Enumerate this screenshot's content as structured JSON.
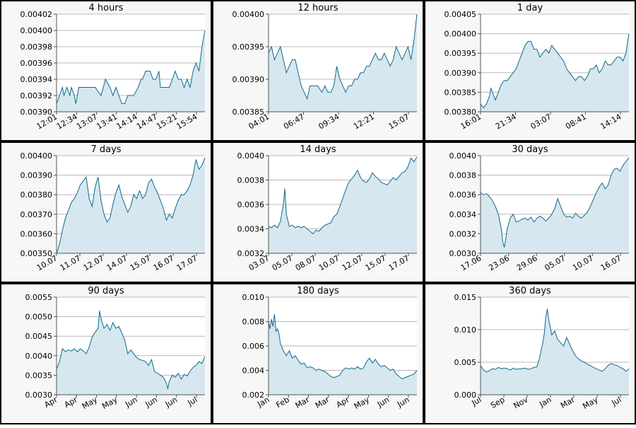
{
  "chart_data": [
    {
      "type": "area",
      "title": "4 hours",
      "ylim": [
        0.0039,
        0.00402
      ],
      "y_ticks": [
        "0.00390",
        "0.00392",
        "0.00394",
        "0.00396",
        "0.00398",
        "0.00400",
        "0.00402"
      ],
      "x_ticks": [
        "12:01",
        "12:34",
        "13:07",
        "13:41",
        "14:14",
        "14:47",
        "15:21",
        "15:54"
      ],
      "x": [
        0,
        0.02,
        0.04,
        0.05,
        0.07,
        0.09,
        0.1,
        0.12,
        0.13,
        0.15,
        0.17,
        0.2,
        0.23,
        0.26,
        0.3,
        0.33,
        0.36,
        0.38,
        0.4,
        0.42,
        0.44,
        0.46,
        0.48,
        0.5,
        0.52,
        0.55,
        0.57,
        0.58,
        0.6,
        0.62,
        0.63,
        0.65,
        0.67,
        0.69,
        0.7,
        0.72,
        0.74,
        0.76,
        0.78,
        0.8,
        0.82,
        0.84,
        0.86,
        0.88,
        0.9,
        0.92,
        0.94,
        0.96,
        0.98,
        1.0
      ],
      "values": [
        0.00391,
        0.00392,
        0.00393,
        0.00392,
        0.00393,
        0.00392,
        0.00393,
        0.00392,
        0.00391,
        0.00393,
        0.00393,
        0.00393,
        0.00393,
        0.00393,
        0.00392,
        0.00394,
        0.00393,
        0.00392,
        0.00393,
        0.00392,
        0.00391,
        0.00391,
        0.00392,
        0.00392,
        0.00392,
        0.00393,
        0.00394,
        0.00394,
        0.00395,
        0.00395,
        0.00395,
        0.00394,
        0.00394,
        0.00395,
        0.00393,
        0.00393,
        0.00393,
        0.00393,
        0.00394,
        0.00395,
        0.00394,
        0.00394,
        0.00393,
        0.00394,
        0.00393,
        0.00395,
        0.00396,
        0.00395,
        0.00398,
        0.004
      ]
    },
    {
      "type": "area",
      "title": "12 hours",
      "ylim": [
        0.00385,
        0.004
      ],
      "y_ticks": [
        "0.00385",
        "0.00390",
        "0.00395",
        "0.00400"
      ],
      "x_ticks": [
        "04:01",
        "06:47",
        "09:34",
        "12:21",
        "15:07"
      ],
      "x": [
        0,
        0.02,
        0.04,
        0.06,
        0.08,
        0.1,
        0.12,
        0.14,
        0.16,
        0.18,
        0.2,
        0.22,
        0.24,
        0.26,
        0.28,
        0.3,
        0.33,
        0.36,
        0.38,
        0.4,
        0.42,
        0.44,
        0.46,
        0.48,
        0.5,
        0.52,
        0.54,
        0.56,
        0.58,
        0.6,
        0.62,
        0.64,
        0.66,
        0.68,
        0.7,
        0.72,
        0.74,
        0.76,
        0.78,
        0.8,
        0.82,
        0.84,
        0.86,
        0.88,
        0.9,
        0.92,
        0.94,
        0.96,
        0.98,
        1.0
      ],
      "values": [
        0.00394,
        0.00395,
        0.00393,
        0.00394,
        0.00395,
        0.00393,
        0.00391,
        0.00392,
        0.00393,
        0.00393,
        0.00391,
        0.00389,
        0.00388,
        0.00387,
        0.00389,
        0.00389,
        0.00389,
        0.00388,
        0.00389,
        0.00388,
        0.00388,
        0.00389,
        0.00392,
        0.0039,
        0.00389,
        0.00388,
        0.00389,
        0.00389,
        0.0039,
        0.0039,
        0.00391,
        0.00391,
        0.00392,
        0.00392,
        0.00393,
        0.00394,
        0.00393,
        0.00393,
        0.00394,
        0.00393,
        0.00392,
        0.00393,
        0.00395,
        0.00394,
        0.00393,
        0.00394,
        0.00395,
        0.00393,
        0.00396,
        0.004
      ]
    },
    {
      "type": "area",
      "title": "1 day",
      "ylim": [
        0.0038,
        0.00405
      ],
      "y_ticks": [
        "0.00380",
        "0.00385",
        "0.00390",
        "0.00395",
        "0.00400",
        "0.00405"
      ],
      "x_ticks": [
        "16:01",
        "21:34",
        "03:07",
        "08:41",
        "14:14"
      ],
      "x": [
        0,
        0.02,
        0.04,
        0.06,
        0.07,
        0.08,
        0.1,
        0.12,
        0.14,
        0.16,
        0.18,
        0.2,
        0.22,
        0.24,
        0.26,
        0.28,
        0.3,
        0.32,
        0.34,
        0.36,
        0.38,
        0.4,
        0.42,
        0.44,
        0.46,
        0.48,
        0.5,
        0.52,
        0.54,
        0.56,
        0.58,
        0.6,
        0.62,
        0.64,
        0.66,
        0.68,
        0.7,
        0.72,
        0.74,
        0.76,
        0.78,
        0.8,
        0.82,
        0.84,
        0.86,
        0.88,
        0.9,
        0.92,
        0.94,
        0.96,
        0.98,
        1.0
      ],
      "values": [
        0.00382,
        0.00381,
        0.00382,
        0.00384,
        0.00386,
        0.00385,
        0.00383,
        0.00385,
        0.00387,
        0.00388,
        0.00388,
        0.00389,
        0.0039,
        0.00391,
        0.00393,
        0.00395,
        0.00397,
        0.00398,
        0.00398,
        0.00396,
        0.00396,
        0.00394,
        0.00395,
        0.00396,
        0.00395,
        0.00397,
        0.00396,
        0.00395,
        0.00394,
        0.00393,
        0.00391,
        0.0039,
        0.00389,
        0.00388,
        0.00389,
        0.00389,
        0.00388,
        0.00389,
        0.00391,
        0.00391,
        0.00392,
        0.0039,
        0.00391,
        0.00393,
        0.00392,
        0.00392,
        0.00393,
        0.00394,
        0.00394,
        0.00393,
        0.00395,
        0.004
      ]
    },
    {
      "type": "area",
      "title": "7 days",
      "ylim": [
        0.0035,
        0.004
      ],
      "y_ticks": [
        "0.00350",
        "0.00360",
        "0.00370",
        "0.00380",
        "0.00390",
        "0.00400"
      ],
      "x_ticks": [
        "10.07",
        "11.07",
        "12.07",
        "14.07",
        "15.07",
        "16.07",
        "17.07"
      ],
      "x": [
        0,
        0.01,
        0.02,
        0.03,
        0.04,
        0.05,
        0.06,
        0.08,
        0.1,
        0.12,
        0.14,
        0.16,
        0.18,
        0.2,
        0.22,
        0.24,
        0.26,
        0.28,
        0.3,
        0.32,
        0.34,
        0.36,
        0.38,
        0.4,
        0.42,
        0.44,
        0.46,
        0.48,
        0.5,
        0.52,
        0.54,
        0.56,
        0.58,
        0.6,
        0.62,
        0.64,
        0.66,
        0.68,
        0.7,
        0.72,
        0.74,
        0.76,
        0.78,
        0.8,
        0.82,
        0.84,
        0.86,
        0.88,
        0.9,
        0.92,
        0.94,
        0.96,
        0.98,
        1.0
      ],
      "values": [
        0.0035,
        0.00352,
        0.00355,
        0.00358,
        0.00362,
        0.00365,
        0.00368,
        0.00372,
        0.00376,
        0.00378,
        0.00381,
        0.00385,
        0.00387,
        0.00389,
        0.00378,
        0.00374,
        0.00384,
        0.00389,
        0.00377,
        0.0037,
        0.00366,
        0.00368,
        0.00375,
        0.00381,
        0.00385,
        0.00379,
        0.00375,
        0.00371,
        0.00374,
        0.0038,
        0.00378,
        0.00382,
        0.00378,
        0.0038,
        0.00386,
        0.00388,
        0.00384,
        0.00381,
        0.00377,
        0.00373,
        0.00367,
        0.0037,
        0.00368,
        0.00373,
        0.00377,
        0.0038,
        0.0038,
        0.00382,
        0.00385,
        0.0039,
        0.00398,
        0.00393,
        0.00395,
        0.00399
      ]
    },
    {
      "type": "area",
      "title": "14 days",
      "ylim": [
        0.0032,
        0.004
      ],
      "y_ticks": [
        "0.0032",
        "0.0034",
        "0.0036",
        "0.0038",
        "0.0040"
      ],
      "x_ticks": [
        "03.07",
        "05.07",
        "08.07",
        "10.07",
        "12.07",
        "15.07",
        "17.07"
      ],
      "x": [
        0,
        0.02,
        0.04,
        0.06,
        0.08,
        0.1,
        0.11,
        0.12,
        0.14,
        0.16,
        0.18,
        0.2,
        0.22,
        0.24,
        0.26,
        0.28,
        0.3,
        0.32,
        0.34,
        0.36,
        0.38,
        0.4,
        0.42,
        0.44,
        0.46,
        0.48,
        0.5,
        0.52,
        0.54,
        0.56,
        0.58,
        0.6,
        0.62,
        0.64,
        0.66,
        0.68,
        0.7,
        0.72,
        0.74,
        0.76,
        0.78,
        0.8,
        0.82,
        0.84,
        0.86,
        0.88,
        0.9,
        0.92,
        0.94,
        0.96,
        0.98,
        1.0
      ],
      "values": [
        0.00342,
        0.00341,
        0.00343,
        0.00341,
        0.00346,
        0.0036,
        0.00373,
        0.00352,
        0.00342,
        0.00343,
        0.00341,
        0.00342,
        0.00341,
        0.00342,
        0.0034,
        0.00338,
        0.00336,
        0.00339,
        0.00338,
        0.00341,
        0.00343,
        0.00344,
        0.00345,
        0.0035,
        0.00352,
        0.00358,
        0.00365,
        0.00372,
        0.00378,
        0.00381,
        0.00384,
        0.00388,
        0.00382,
        0.00379,
        0.00378,
        0.00381,
        0.00386,
        0.00383,
        0.00381,
        0.00378,
        0.00377,
        0.00376,
        0.00379,
        0.00382,
        0.0038,
        0.00383,
        0.00386,
        0.00387,
        0.00391,
        0.00398,
        0.00395,
        0.00399
      ]
    },
    {
      "type": "area",
      "title": "30 days",
      "ylim": [
        0.003,
        0.004
      ],
      "y_ticks": [
        "0.0030",
        "0.0032",
        "0.0034",
        "0.0036",
        "0.0038",
        "0.0040"
      ],
      "x_ticks": [
        "17.06",
        "23.06",
        "29.06",
        "05.07",
        "10.07",
        "16.07"
      ],
      "x": [
        0,
        0.02,
        0.04,
        0.06,
        0.08,
        0.1,
        0.12,
        0.14,
        0.15,
        0.16,
        0.17,
        0.18,
        0.2,
        0.22,
        0.24,
        0.26,
        0.28,
        0.3,
        0.32,
        0.34,
        0.36,
        0.38,
        0.4,
        0.42,
        0.44,
        0.46,
        0.48,
        0.5,
        0.52,
        0.54,
        0.56,
        0.58,
        0.6,
        0.62,
        0.64,
        0.66,
        0.68,
        0.7,
        0.72,
        0.74,
        0.76,
        0.78,
        0.8,
        0.82,
        0.84,
        0.86,
        0.88,
        0.9,
        0.92,
        0.94,
        0.96,
        0.98,
        1.0
      ],
      "values": [
        0.00362,
        0.0036,
        0.00361,
        0.00358,
        0.00354,
        0.00348,
        0.0034,
        0.00325,
        0.00312,
        0.00306,
        0.00315,
        0.00325,
        0.00336,
        0.0034,
        0.00332,
        0.00333,
        0.00335,
        0.00336,
        0.00334,
        0.00337,
        0.00332,
        0.00336,
        0.00338,
        0.00336,
        0.00333,
        0.00336,
        0.0034,
        0.00346,
        0.00356,
        0.00348,
        0.0034,
        0.00337,
        0.00338,
        0.00336,
        0.00341,
        0.00338,
        0.00336,
        0.00339,
        0.00342,
        0.00348,
        0.00355,
        0.00362,
        0.00368,
        0.00372,
        0.00366,
        0.0037,
        0.0038,
        0.00386,
        0.00387,
        0.00384,
        0.0039,
        0.00394,
        0.00398
      ]
    },
    {
      "type": "area",
      "title": "90 days",
      "ylim": [
        0.003,
        0.0055
      ],
      "y_ticks": [
        "0.0030",
        "0.0035",
        "0.0040",
        "0.0045",
        "0.0050",
        "0.0055"
      ],
      "x_ticks": [
        "Apr",
        "Apr",
        "May",
        "May",
        "Jun",
        "Jun",
        "Jun",
        "Jul"
      ],
      "x": [
        0,
        0.02,
        0.04,
        0.06,
        0.08,
        0.1,
        0.12,
        0.14,
        0.16,
        0.18,
        0.2,
        0.22,
        0.24,
        0.26,
        0.28,
        0.29,
        0.3,
        0.32,
        0.34,
        0.36,
        0.38,
        0.4,
        0.42,
        0.44,
        0.46,
        0.48,
        0.5,
        0.52,
        0.54,
        0.56,
        0.58,
        0.6,
        0.62,
        0.64,
        0.66,
        0.68,
        0.7,
        0.72,
        0.74,
        0.75,
        0.76,
        0.78,
        0.8,
        0.82,
        0.84,
        0.86,
        0.88,
        0.9,
        0.92,
        0.94,
        0.96,
        0.98,
        1.0
      ],
      "values": [
        0.00365,
        0.00385,
        0.00418,
        0.0041,
        0.00415,
        0.00412,
        0.00418,
        0.0041,
        0.00418,
        0.00412,
        0.00405,
        0.00422,
        0.00448,
        0.0046,
        0.0047,
        0.00515,
        0.00495,
        0.0047,
        0.0048,
        0.00465,
        0.00485,
        0.0047,
        0.00475,
        0.00458,
        0.0044,
        0.00405,
        0.00415,
        0.00405,
        0.00395,
        0.0039,
        0.00388,
        0.00385,
        0.00375,
        0.0039,
        0.0036,
        0.00355,
        0.0035,
        0.00345,
        0.0033,
        0.00315,
        0.00335,
        0.0035,
        0.00345,
        0.00355,
        0.0034,
        0.00352,
        0.00348,
        0.0036,
        0.0037,
        0.00375,
        0.00385,
        0.0038,
        0.00398
      ]
    },
    {
      "type": "area",
      "title": "180 days",
      "ylim": [
        0.002,
        0.01
      ],
      "y_ticks": [
        "0.002",
        "0.004",
        "0.006",
        "0.008",
        "0.010"
      ],
      "x_ticks": [
        "Jan",
        "Feb",
        "Mar",
        "Mar",
        "Apr",
        "May",
        "Jun",
        "Jun"
      ],
      "x": [
        0,
        0.01,
        0.02,
        0.03,
        0.04,
        0.05,
        0.06,
        0.07,
        0.08,
        0.1,
        0.12,
        0.14,
        0.16,
        0.18,
        0.2,
        0.22,
        0.24,
        0.26,
        0.28,
        0.3,
        0.32,
        0.34,
        0.36,
        0.38,
        0.4,
        0.42,
        0.44,
        0.46,
        0.48,
        0.5,
        0.52,
        0.54,
        0.56,
        0.58,
        0.6,
        0.62,
        0.64,
        0.66,
        0.68,
        0.7,
        0.72,
        0.74,
        0.76,
        0.78,
        0.8,
        0.82,
        0.84,
        0.86,
        0.88,
        0.9,
        0.92,
        0.94,
        0.96,
        0.98,
        1.0
      ],
      "values": [
        0.008,
        0.0074,
        0.0082,
        0.0076,
        0.0086,
        0.0072,
        0.0074,
        0.007,
        0.0062,
        0.0056,
        0.0052,
        0.0056,
        0.005,
        0.0052,
        0.0048,
        0.0045,
        0.0046,
        0.0042,
        0.0043,
        0.0042,
        0.004,
        0.0041,
        0.004,
        0.0039,
        0.0037,
        0.0035,
        0.0034,
        0.0035,
        0.0036,
        0.004,
        0.0042,
        0.0041,
        0.0042,
        0.0041,
        0.0043,
        0.0041,
        0.0042,
        0.0047,
        0.005,
        0.0046,
        0.0049,
        0.0045,
        0.0043,
        0.0044,
        0.0042,
        0.004,
        0.0041,
        0.0037,
        0.0035,
        0.0033,
        0.0034,
        0.0035,
        0.0036,
        0.0037,
        0.004
      ]
    },
    {
      "type": "area",
      "title": "360 days",
      "ylim": [
        0.0,
        0.015
      ],
      "y_ticks": [
        "0.000",
        "0.005",
        "0.010",
        "0.015"
      ],
      "x_ticks": [
        "Jul",
        "Sep",
        "Nov",
        "Jan",
        "Mar",
        "May",
        "Jul"
      ],
      "x": [
        0,
        0.02,
        0.04,
        0.06,
        0.08,
        0.1,
        0.12,
        0.14,
        0.16,
        0.18,
        0.2,
        0.22,
        0.24,
        0.26,
        0.28,
        0.3,
        0.32,
        0.34,
        0.36,
        0.38,
        0.4,
        0.41,
        0.42,
        0.43,
        0.44,
        0.45,
        0.46,
        0.48,
        0.5,
        0.52,
        0.54,
        0.56,
        0.58,
        0.6,
        0.62,
        0.64,
        0.66,
        0.68,
        0.7,
        0.72,
        0.74,
        0.76,
        0.78,
        0.8,
        0.82,
        0.84,
        0.86,
        0.88,
        0.9,
        0.92,
        0.94,
        0.96,
        0.98,
        1.0
      ],
      "values": [
        0.0045,
        0.0038,
        0.0035,
        0.0037,
        0.004,
        0.0039,
        0.0042,
        0.004,
        0.0041,
        0.004,
        0.0038,
        0.0041,
        0.0039,
        0.004,
        0.004,
        0.0041,
        0.0039,
        0.004,
        0.0042,
        0.0043,
        0.0058,
        0.007,
        0.008,
        0.0095,
        0.012,
        0.0132,
        0.0115,
        0.0092,
        0.0098,
        0.0085,
        0.008,
        0.0075,
        0.0088,
        0.0078,
        0.0068,
        0.006,
        0.0055,
        0.0052,
        0.005,
        0.0047,
        0.0045,
        0.0042,
        0.004,
        0.0038,
        0.0036,
        0.004,
        0.0045,
        0.0048,
        0.0046,
        0.0045,
        0.0042,
        0.004,
        0.0036,
        0.004
      ]
    }
  ]
}
